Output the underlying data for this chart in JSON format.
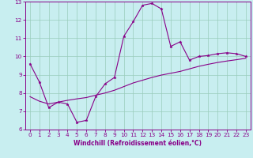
{
  "xlabel": "Windchill (Refroidissement éolien,°C)",
  "background_color": "#c8eef0",
  "grid_color": "#99ccbb",
  "line_color": "#880088",
  "spine_color": "#880088",
  "x_line1": [
    0,
    1,
    2,
    3,
    4,
    5,
    6,
    7,
    8,
    9,
    10,
    11,
    12,
    13,
    14,
    15,
    16,
    17,
    18,
    19,
    20,
    21,
    22,
    23
  ],
  "y_line1": [
    9.6,
    8.6,
    7.2,
    7.5,
    7.4,
    6.4,
    6.5,
    7.8,
    8.5,
    8.85,
    11.1,
    11.9,
    12.8,
    12.9,
    12.6,
    10.55,
    10.8,
    9.8,
    10.0,
    10.05,
    10.15,
    10.2,
    10.15,
    10.0
  ],
  "x_line2": [
    0,
    1,
    2,
    3,
    4,
    5,
    6,
    7,
    8,
    9,
    10,
    11,
    12,
    13,
    14,
    15,
    16,
    17,
    18,
    19,
    20,
    21,
    22,
    23
  ],
  "y_line2": [
    7.8,
    7.55,
    7.4,
    7.5,
    7.6,
    7.68,
    7.75,
    7.88,
    8.0,
    8.15,
    8.35,
    8.55,
    8.7,
    8.85,
    8.98,
    9.08,
    9.18,
    9.32,
    9.46,
    9.57,
    9.67,
    9.75,
    9.82,
    9.9
  ],
  "xlim": [
    -0.5,
    23.5
  ],
  "ylim": [
    6.0,
    13.0
  ],
  "yticks": [
    6,
    7,
    8,
    9,
    10,
    11,
    12,
    13
  ],
  "xticks": [
    0,
    1,
    2,
    3,
    4,
    5,
    6,
    7,
    8,
    9,
    10,
    11,
    12,
    13,
    14,
    15,
    16,
    17,
    18,
    19,
    20,
    21,
    22,
    23
  ],
  "tick_fontsize": 5.2,
  "xlabel_fontsize": 5.5,
  "marker_size": 2.5,
  "linewidth": 0.8
}
